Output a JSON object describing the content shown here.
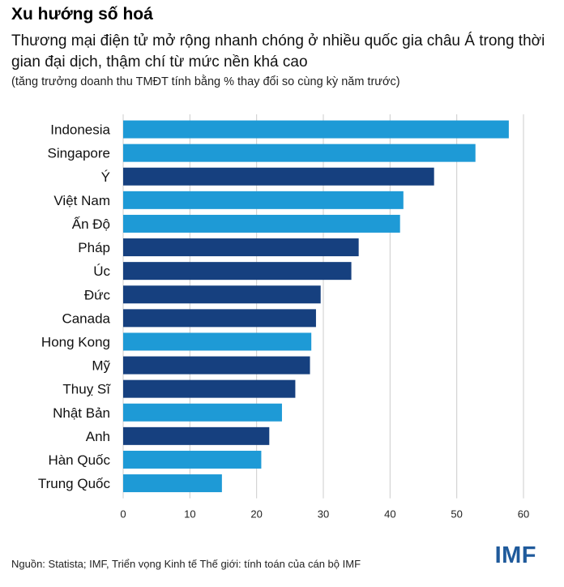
{
  "header": {
    "title": "Xu hướng số hoá",
    "subtitle": "Thương mại điện tử mở rộng nhanh chóng ở nhiều quốc gia châu Á trong thời gian đại dịch, thậm chí từ mức nền khá cao",
    "note": "(tăng trưởng doanh thu TMĐT tính bằng % thay đổi so cùng kỳ năm trước)"
  },
  "footer": {
    "source": "Nguồn: Statista; IMF, Triển vọng Kinh tế Thế giới: tính toán của cán bộ IMF",
    "logo": "IMF"
  },
  "colors": {
    "asia": "#1e9ad6",
    "other": "#16407f",
    "grid": "#cccccc"
  },
  "chart_data": {
    "type": "bar",
    "orientation": "horizontal",
    "categories": [
      "Indonesia",
      "Singapore",
      "Ý",
      "Việt Nam",
      "Ấn Độ",
      "Pháp",
      "Úc",
      "Đức",
      "Canada",
      "Hong Kong",
      "Mỹ",
      "Thuỵ Sĩ",
      "Nhật Bản",
      "Anh",
      "Hàn Quốc",
      "Trung Quốc"
    ],
    "values": [
      57.8,
      52.8,
      46.6,
      42.0,
      41.5,
      35.3,
      34.2,
      29.6,
      28.9,
      28.2,
      28.0,
      25.8,
      23.8,
      21.9,
      20.7,
      14.8
    ],
    "group": [
      "asia",
      "asia",
      "other",
      "asia",
      "asia",
      "other",
      "other",
      "other",
      "other",
      "asia",
      "other",
      "other",
      "asia",
      "other",
      "asia",
      "asia"
    ],
    "xlim": [
      0,
      60
    ],
    "xticks": [
      "0",
      "10",
      "20",
      "30",
      "40",
      "50",
      "60"
    ],
    "grid": true
  }
}
